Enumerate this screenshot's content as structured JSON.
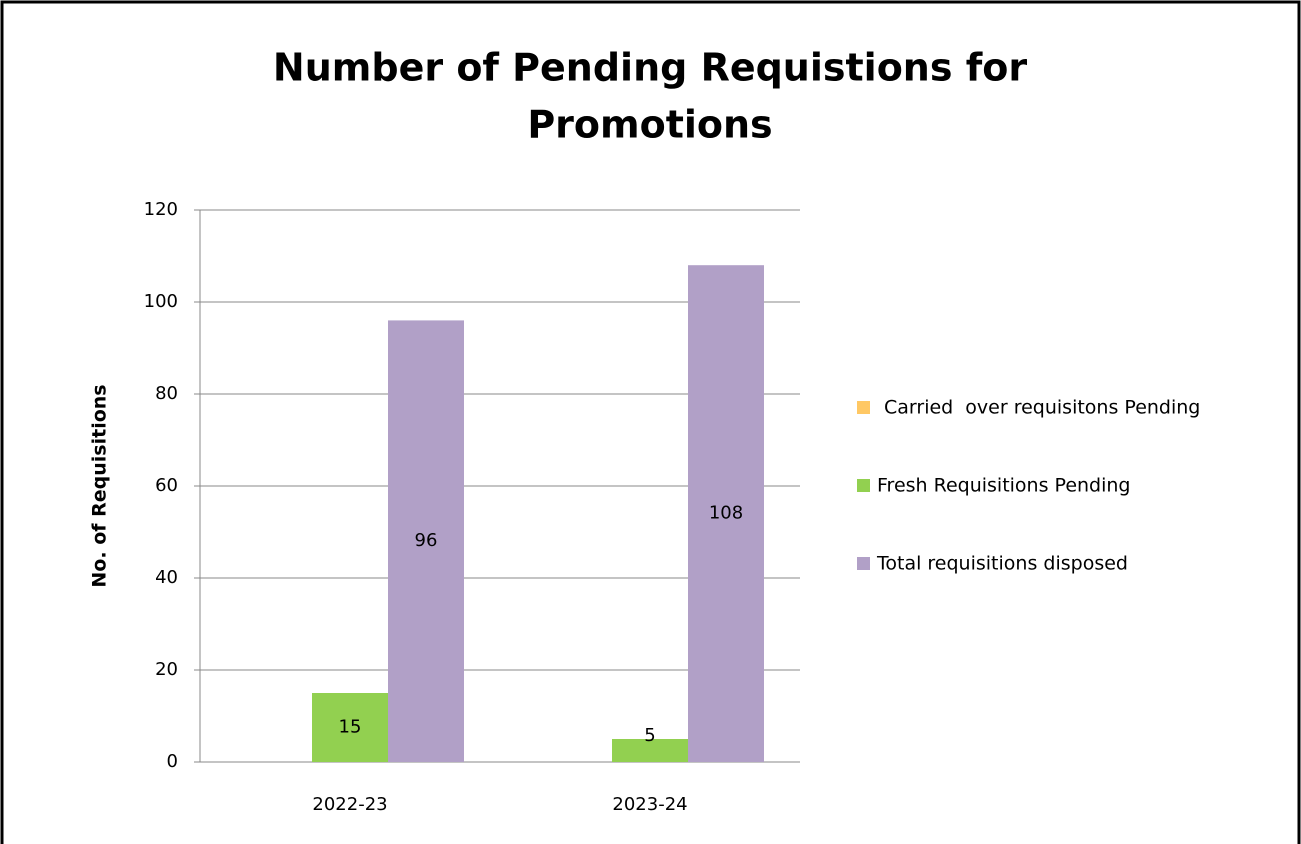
{
  "chart_data": {
    "type": "bar",
    "title": [
      "Number of Pending Requistions for",
      "Promotions"
    ],
    "y_label": "No. of Requisitions",
    "categories": [
      "2022-23",
      "2023-24"
    ],
    "series": [
      {
        "name": "Carried  over requisitons Pending",
        "color": "#ffc864",
        "values": [
          0,
          0
        ]
      },
      {
        "name": "Fresh Requisitions Pending",
        "color": "#92d050",
        "values": [
          15,
          5
        ],
        "value_labels": [
          "15",
          "5"
        ]
      },
      {
        "name": "Total requisitions disposed",
        "color": "#b1a0c7",
        "values": [
          96,
          108
        ],
        "value_labels": [
          "96",
          "108"
        ]
      }
    ],
    "ylim": [
      0,
      120
    ],
    "yticks": [
      0,
      20,
      40,
      60,
      80,
      100,
      120
    ],
    "grid": true,
    "legend": "right"
  }
}
